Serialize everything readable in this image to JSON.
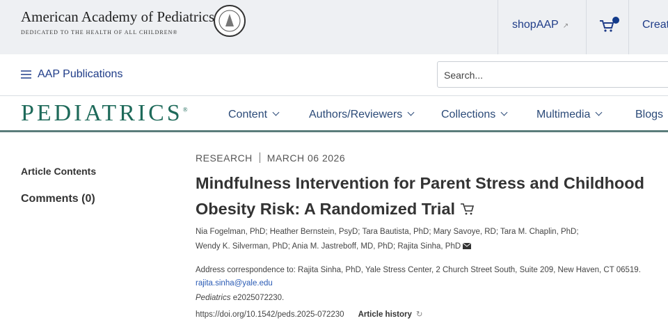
{
  "header": {
    "brand_name": "American Academy of Pediatrics",
    "brand_tagline": "DEDICATED TO THE HEALTH OF ALL CHILDREN®",
    "links": [
      "shopAAP",
      "Creat"
    ]
  },
  "subnav": {
    "publications": "AAP Publications",
    "search_placeholder": "Search..."
  },
  "nav": {
    "journal": "PEDIATRICS",
    "items": [
      "Content",
      "Authors/Reviewers",
      "Collections",
      "Multimedia",
      "Blogs"
    ]
  },
  "sidebar": {
    "items": [
      "Article Contents",
      "Comments (0)"
    ]
  },
  "article": {
    "category": "RESEARCH",
    "date": "MARCH 06 2026",
    "title": "Mindfulness Intervention for Parent Stress and Childhood Obesity Risk: A Randomized Trial",
    "authors": [
      "Nia Fogelman, PhD; Heather Bernstein, PsyD; Tara Bautista, PhD; Mary Savoye, RD; Tara M. Chaplin, PhD;",
      "Wendy K. Silverman, PhD; Ania M. Jastreboff, MD, PhD; Rajita Sinha, PhD"
    ],
    "address": "Address correspondence to: Rajita Sinha, PhD, Yale Stress Center, 2 Church Street South, Suite 209, New Haven, CT 06519.",
    "email": "rajita.sinha@yale.edu",
    "journal": "Pediatrics",
    "article_id": "e2025072230.",
    "doi": "https://doi.org/10.1542/peds.2025-072230",
    "history": "Article history"
  }
}
